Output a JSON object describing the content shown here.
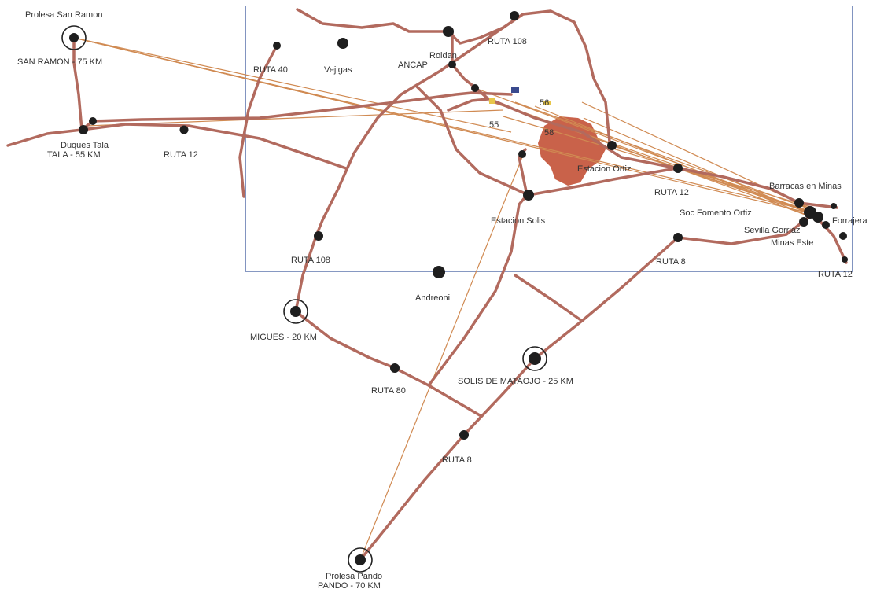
{
  "map": {
    "labels": {
      "prolesa_san_ramon": "Prolesa San Ramon",
      "san_ramon": "SAN RAMON - 75 KM",
      "duques_tala": "Duques Tala",
      "tala": "TALA - 55 KM",
      "ruta12_west": "RUTA 12",
      "ruta40": "RUTA 40",
      "vejigas": "Vejigas",
      "ancap": "ANCAP",
      "roldan": "Roldan",
      "ruta108_top": "RUTA 108",
      "num_55": "55",
      "num_56": "56",
      "num_58": "58",
      "estacion_ortiz": "Estacion Ortiz",
      "estacion_solis": "Estacion Solis",
      "ruta12_east": "RUTA 12",
      "barracas": "Barracas en Minas",
      "soc_fomento": "Soc Fomento Ortiz",
      "sevillagorriaz": "Sevilla Gorriaz",
      "ruta8_east": "RUTA 8",
      "ruta12_far": "RUTA 12",
      "ruta108_left": "RUTA 108",
      "andreoni": "Andreoni",
      "migues": "MIGUES - 20 KM",
      "ruta80": "RUTA 80",
      "solis_mataojo": "SOLIS DE MATAOJO - 25 KM",
      "ruta8_south": "RUTA 8",
      "prolesa_pando": "Prolesa Pando",
      "pando": "PANDO - 70 KM",
      "forrajera": "Forrajera",
      "minas_right": "Minas Este"
    },
    "colors": {
      "road": "#b26a5e",
      "route_line": "#d08a52",
      "urban_area": "#c9624a",
      "frame": "#3e5a9e",
      "node": "#1e1e1e"
    }
  }
}
